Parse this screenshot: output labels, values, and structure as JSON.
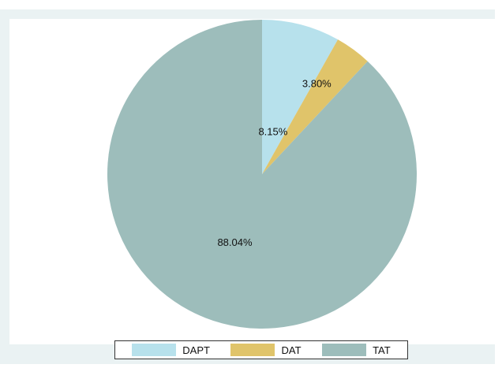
{
  "chart_data": {
    "type": "pie",
    "categories": [
      "DAPT",
      "DAT",
      "TAT"
    ],
    "values": [
      8.15,
      3.8,
      88.04
    ],
    "labels": [
      "8.15%",
      "3.80%",
      "88.04%"
    ],
    "colors": [
      "#b7e1ec",
      "#e0c46a",
      "#9dbdbb"
    ],
    "legend_position": "bottom",
    "start_angle_deg": 0,
    "direction": "clockwise"
  },
  "legend": {
    "items": [
      {
        "label": "DAPT",
        "color": "#b7e1ec"
      },
      {
        "label": "DAT",
        "color": "#e0c46a"
      },
      {
        "label": "TAT",
        "color": "#9dbdbb"
      }
    ]
  }
}
